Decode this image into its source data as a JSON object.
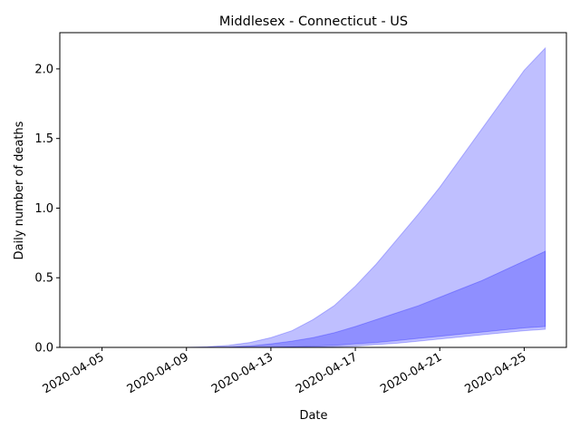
{
  "chart_data": {
    "type": "area",
    "title": "Middlesex - Connecticut - US",
    "xlabel": "Date",
    "ylabel": "Daily number of deaths",
    "x_ticks": [
      "2020-04-05",
      "2020-04-09",
      "2020-04-13",
      "2020-04-17",
      "2020-04-21",
      "2020-04-25"
    ],
    "y_ticks": [
      "0.0",
      "0.5",
      "1.0",
      "1.5",
      "2.0"
    ],
    "xlim": [
      "2020-04-03",
      "2020-04-27"
    ],
    "ylim": [
      0,
      2.26
    ],
    "grid": false,
    "dates": [
      "2020-04-09",
      "2020-04-10",
      "2020-04-11",
      "2020-04-12",
      "2020-04-13",
      "2020-04-14",
      "2020-04-15",
      "2020-04-16",
      "2020-04-17",
      "2020-04-18",
      "2020-04-19",
      "2020-04-20",
      "2020-04-21",
      "2020-04-22",
      "2020-04-23",
      "2020-04-24",
      "2020-04-25",
      "2020-04-26"
    ],
    "bands": [
      {
        "color": "#0000ff",
        "opacity": 0.25,
        "lower": [
          0,
          0,
          0,
          0,
          0,
          0,
          0.002,
          0.005,
          0.01,
          0.02,
          0.03,
          0.045,
          0.06,
          0.075,
          0.09,
          0.105,
          0.12,
          0.13
        ],
        "upper": [
          0,
          0.005,
          0.015,
          0.035,
          0.07,
          0.12,
          0.2,
          0.3,
          0.44,
          0.6,
          0.78,
          0.96,
          1.15,
          1.36,
          1.57,
          1.78,
          1.99,
          2.15
        ]
      },
      {
        "color": "#0000ff",
        "opacity": 0.25,
        "lower": [
          0,
          0,
          0,
          0,
          0,
          0.003,
          0.008,
          0.015,
          0.025,
          0.035,
          0.05,
          0.065,
          0.08,
          0.095,
          0.11,
          0.125,
          0.14,
          0.15
        ],
        "upper": [
          0,
          0,
          0.003,
          0.01,
          0.025,
          0.045,
          0.07,
          0.105,
          0.15,
          0.2,
          0.25,
          0.3,
          0.36,
          0.42,
          0.48,
          0.55,
          0.62,
          0.69
        ]
      }
    ]
  }
}
